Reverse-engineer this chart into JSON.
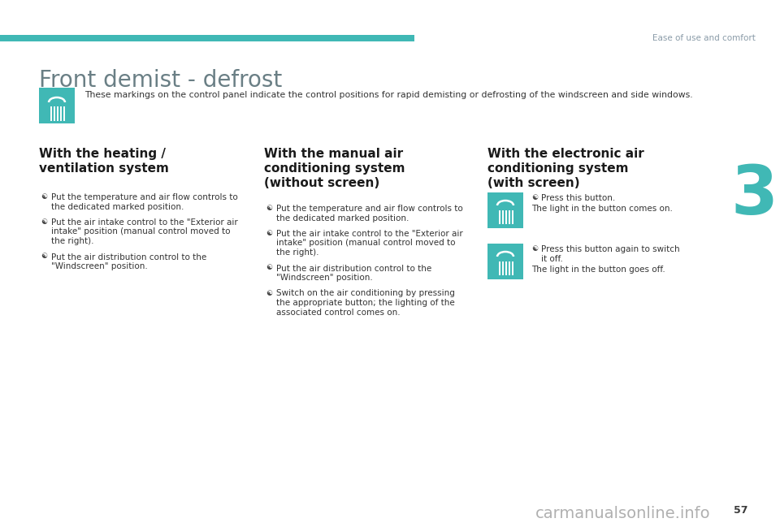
{
  "bg_color": "#ffffff",
  "teal_color": "#40b8b5",
  "dark_text": "#3a3a3a",
  "gray_text": "#8a9ba8",
  "title_color": "#6a7f85",
  "top_right_text": "Ease of use and comfort",
  "title": "Front demist - defrost",
  "intro_text": "These markings on the control panel indicate the control positions for rapid demisting or defrosting of the windscreen and side windows.",
  "section1_title": "With the heating /\nventilation system",
  "section2_title": "With the manual air\nconditioning system\n(without screen)",
  "section3_title": "With the electronic air\nconditioning system\n(with screen)",
  "section1_bullets": [
    "Put the temperature and air flow controls to\nthe dedicated marked position.",
    "Put the air intake control to the \"Exterior air\nintake\" position (manual control moved to\nthe right).",
    "Put the air distribution control to the\n\"Windscreen\" position."
  ],
  "section2_bullets": [
    "Put the temperature and air flow controls to\nthe dedicated marked position.",
    "Put the air intake control to the \"Exterior air\nintake\" position (manual control moved to\nthe right).",
    "Put the air distribution control to the\n\"Windscreen\" position.",
    "Switch on the air conditioning by pressing\nthe appropriate button; the lighting of the\nassociated control comes on."
  ],
  "section3_bullet1_sym": "☯",
  "section3_bullet1_title": "Press this button.",
  "section3_bullet1_sub": "The light in the button comes on.",
  "section3_bullet2_sym": "☯",
  "section3_bullet2_title": "Press this button again to switch\nit off.",
  "section3_bullet2_sub": "The light in the button goes off.",
  "page_number": "57",
  "watermark": "carmanualsonline.info",
  "chapter_number": "3"
}
